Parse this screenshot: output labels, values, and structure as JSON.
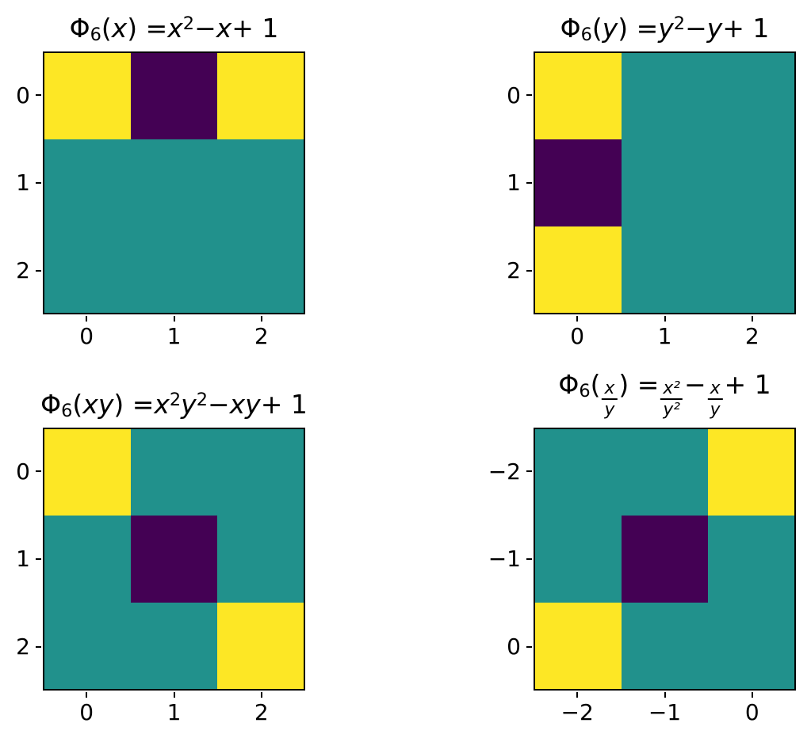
{
  "figure": {
    "background": "#ffffff",
    "colormap": "viridis"
  },
  "palette": {
    "0": "#440154",
    "1": "#21918c",
    "2": "#fde725"
  },
  "chart_data": [
    {
      "type": "heatmap",
      "title": "Φ₆(x) = x² − x + 1",
      "title_segments": [
        {
          "t": "Φ"
        },
        {
          "t": "6",
          "fmt": "sub"
        },
        {
          "t": "("
        },
        {
          "t": "x",
          "it": true
        },
        {
          "t": ") = "
        },
        {
          "t": "x",
          "it": true
        },
        {
          "t": "2",
          "fmt": "sup"
        },
        {
          "t": " − "
        },
        {
          "t": "x",
          "it": true
        },
        {
          "t": " + 1"
        }
      ],
      "x_ticks": [
        "0",
        "1",
        "2"
      ],
      "y_ticks": [
        "0",
        "1",
        "2"
      ],
      "matrix": [
        [
          2,
          0,
          2
        ],
        [
          1,
          1,
          1
        ],
        [
          1,
          1,
          1
        ]
      ],
      "colormap": "viridis",
      "value_colors": {
        "0": "#440154",
        "1": "#21918c",
        "2": "#fde725"
      }
    },
    {
      "type": "heatmap",
      "title": "Φ₆(y) = y² − y + 1",
      "title_segments": [
        {
          "t": "Φ"
        },
        {
          "t": "6",
          "fmt": "sub"
        },
        {
          "t": "("
        },
        {
          "t": "y",
          "it": true
        },
        {
          "t": ") = "
        },
        {
          "t": "y",
          "it": true
        },
        {
          "t": "2",
          "fmt": "sup"
        },
        {
          "t": " − "
        },
        {
          "t": "y",
          "it": true
        },
        {
          "t": " + 1"
        }
      ],
      "x_ticks": [
        "0",
        "1",
        "2"
      ],
      "y_ticks": [
        "0",
        "1",
        "2"
      ],
      "matrix": [
        [
          2,
          1,
          1
        ],
        [
          0,
          1,
          1
        ],
        [
          2,
          1,
          1
        ]
      ],
      "colormap": "viridis",
      "value_colors": {
        "0": "#440154",
        "1": "#21918c",
        "2": "#fde725"
      }
    },
    {
      "type": "heatmap",
      "title": "Φ₆(xy) = x²y² − xy + 1",
      "title_segments": [
        {
          "t": "Φ"
        },
        {
          "t": "6",
          "fmt": "sub"
        },
        {
          "t": "("
        },
        {
          "t": "xy",
          "it": true
        },
        {
          "t": ") = "
        },
        {
          "t": "x",
          "it": true
        },
        {
          "t": "2",
          "fmt": "sup"
        },
        {
          "t": "y",
          "it": true
        },
        {
          "t": "2",
          "fmt": "sup"
        },
        {
          "t": " − "
        },
        {
          "t": "xy",
          "it": true
        },
        {
          "t": " + 1"
        }
      ],
      "x_ticks": [
        "0",
        "1",
        "2"
      ],
      "y_ticks": [
        "0",
        "1",
        "2"
      ],
      "matrix": [
        [
          2,
          1,
          1
        ],
        [
          1,
          0,
          1
        ],
        [
          1,
          1,
          2
        ]
      ],
      "colormap": "viridis",
      "value_colors": {
        "0": "#440154",
        "1": "#21918c",
        "2": "#fde725"
      }
    },
    {
      "type": "heatmap",
      "title": "Φ₆(x/y) = x²/y² − x/y + 1",
      "title_segments": [
        {
          "t": "Φ"
        },
        {
          "t": "6",
          "fmt": "sub"
        },
        {
          "t": "("
        },
        {
          "fmt": "frac",
          "num": "x",
          "den": "y"
        },
        {
          "t": ") = "
        },
        {
          "fmt": "frac",
          "num": "x²",
          "den": "y²"
        },
        {
          "t": " − "
        },
        {
          "fmt": "frac",
          "num": "x",
          "den": "y"
        },
        {
          "t": " + 1"
        }
      ],
      "x_ticks": [
        "−2",
        "−1",
        "0"
      ],
      "y_ticks": [
        "−2",
        "−1",
        "0"
      ],
      "matrix": [
        [
          1,
          1,
          2
        ],
        [
          1,
          0,
          1
        ],
        [
          2,
          1,
          1
        ]
      ],
      "colormap": "viridis",
      "value_colors": {
        "0": "#440154",
        "1": "#21918c",
        "2": "#fde725"
      }
    }
  ]
}
